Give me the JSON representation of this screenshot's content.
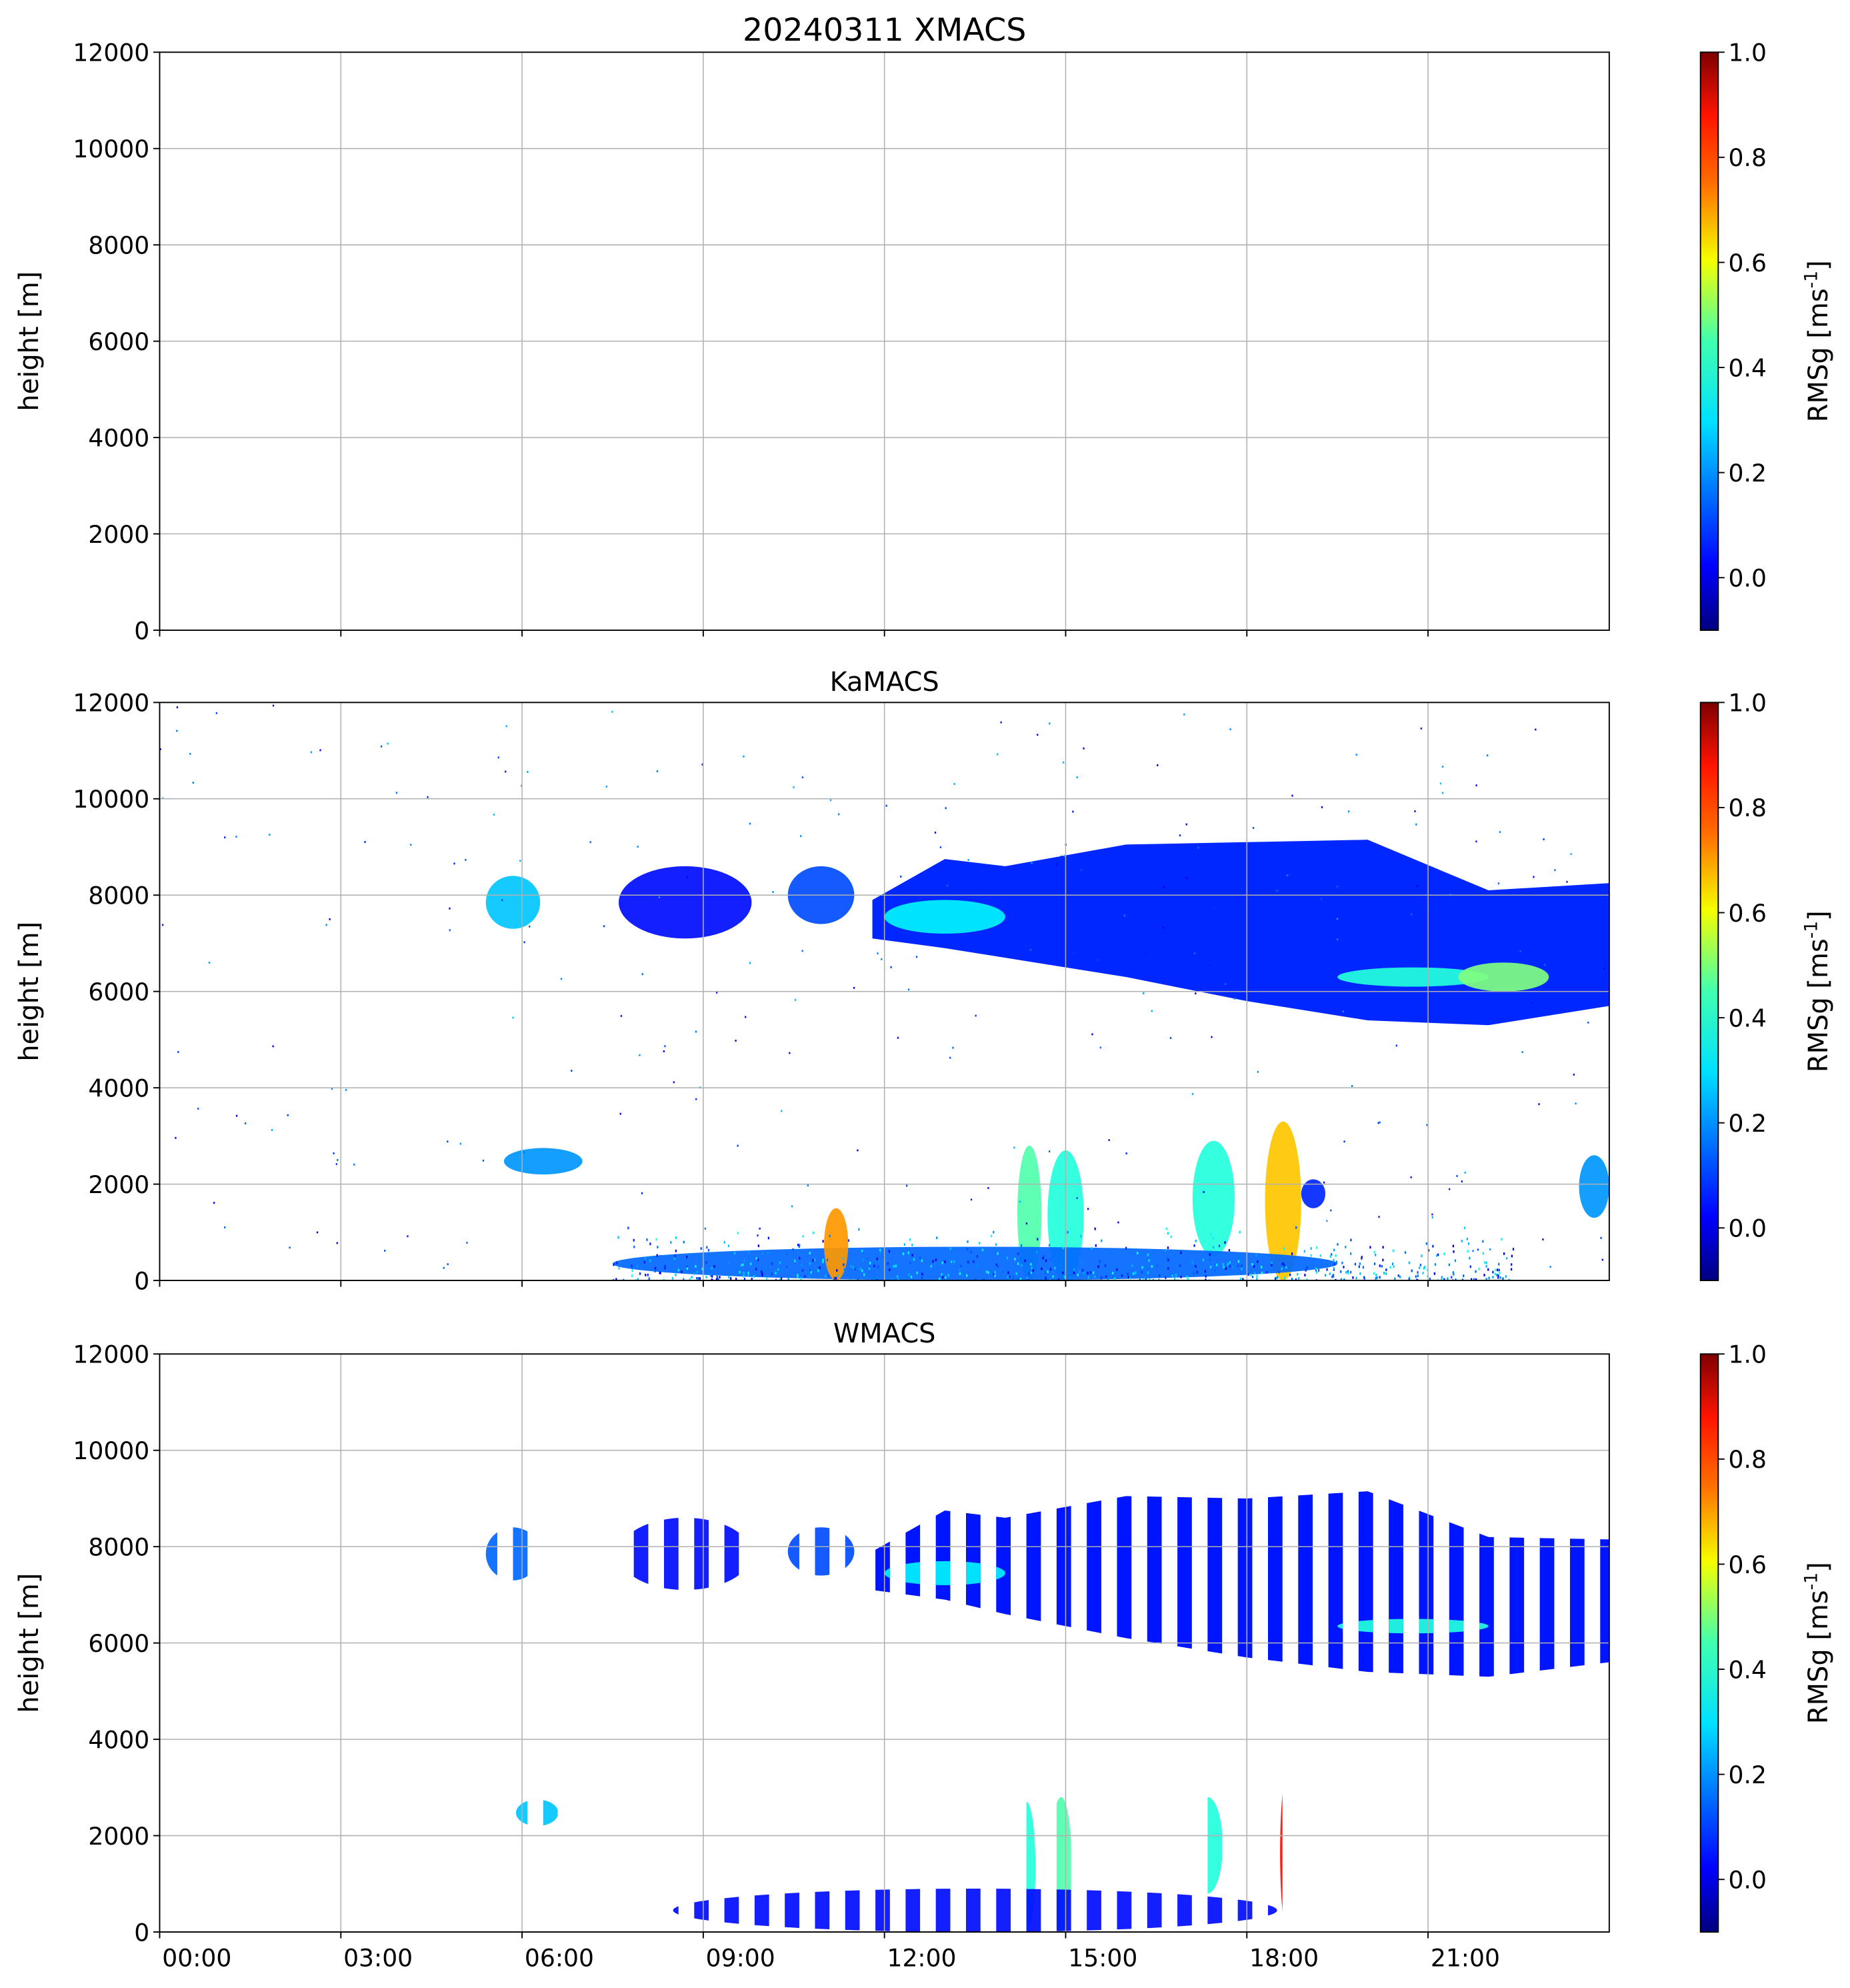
{
  "chart_data": [
    {
      "type": "heatmap",
      "title": "20240311 XMACS",
      "xlabel": "",
      "ylabel": "height [m]",
      "xlim_hours": [
        0,
        24
      ],
      "ylim": [
        0,
        12000
      ],
      "yticks": [
        "0",
        "2000",
        "4000",
        "6000",
        "8000",
        "10000",
        "12000"
      ],
      "grid": true,
      "colorbar": {
        "label": "RMSg [ms",
        "label_sup": "-1",
        "label_end": "]",
        "range": [
          -0.1,
          1.0
        ],
        "ticks": [
          "0.0",
          "0.2",
          "0.4",
          "0.6",
          "0.8",
          "1.0"
        ],
        "colormap": "jet"
      },
      "features": [],
      "noise": false
    },
    {
      "type": "heatmap",
      "title": "KaMACS",
      "xlabel": "",
      "ylabel": "height [m]",
      "xlim_hours": [
        0,
        24
      ],
      "ylim": [
        0,
        12000
      ],
      "yticks": [
        "0",
        "2000",
        "4000",
        "6000",
        "8000",
        "10000",
        "12000"
      ],
      "grid": true,
      "colorbar": {
        "label": "RMSg [ms",
        "label_sup": "-1",
        "label_end": "]",
        "range": [
          -0.1,
          1.0
        ],
        "ticks": [
          "0.0",
          "0.2",
          "0.4",
          "0.6",
          "0.8",
          "1.0"
        ],
        "colormap": "jet"
      },
      "features": [
        {
          "name": "cloud-0530",
          "t0": 5.4,
          "t1": 6.3,
          "bottom": 7300,
          "top": 8400,
          "value": 0.25
        },
        {
          "name": "low-cloud-0600",
          "t0": 5.7,
          "t1": 7.0,
          "bottom": 2200,
          "top": 2750,
          "value": 0.2
        },
        {
          "name": "cloud-0800",
          "t0": 7.6,
          "t1": 9.8,
          "bottom": 7100,
          "top": 8600,
          "value": 0.05
        },
        {
          "name": "cloud-1030",
          "t0": 10.4,
          "t1": 11.5,
          "bottom": 7400,
          "top": 8600,
          "value": 0.12
        },
        {
          "name": "cirrus-top-layer",
          "envelope": {
            "t": [
              11.8,
              13,
              14,
              16,
              18,
              20,
              22,
              24
            ],
            "top": [
              8000,
              8600,
              8700,
              8900,
              9200,
              9000,
              8200,
              8100
            ],
            "bottom": [
              7100,
              6900,
              6700,
              6300,
              5800,
              5400,
              5300,
              5700
            ]
          },
          "value": 0.08
        },
        {
          "name": "cirrus-core-1",
          "t0": 12,
          "t1": 14,
          "bottom": 7200,
          "top": 7900,
          "value": 0.3
        },
        {
          "name": "cirrus-core-2",
          "t0": 19.5,
          "t1": 22,
          "bottom": 6100,
          "top": 6500,
          "value": 0.35
        },
        {
          "name": "cirrus-core-3",
          "t0": 21.5,
          "t1": 23,
          "bottom": 6000,
          "top": 6600,
          "value": 0.45
        },
        {
          "name": "convective-1",
          "t0": 14.2,
          "t1": 14.6,
          "bottom": 0,
          "top": 2800,
          "value": 0.4
        },
        {
          "name": "convective-2",
          "t0": 14.7,
          "t1": 15.3,
          "bottom": 0,
          "top": 2700,
          "value": 0.35
        },
        {
          "name": "convective-3",
          "t0": 17.1,
          "t1": 17.8,
          "bottom": 500,
          "top": 2900,
          "value": 0.35
        },
        {
          "name": "convective-4",
          "t0": 18.3,
          "t1": 18.9,
          "bottom": 0,
          "top": 3300,
          "value": 0.65
        },
        {
          "name": "convective-4-anvil",
          "t0": 18.9,
          "t1": 19.3,
          "bottom": 1500,
          "top": 2100,
          "value": 0.08
        },
        {
          "name": "boundary-layer",
          "t0": 7.5,
          "t1": 19.5,
          "bottom": 0,
          "top": 700,
          "value": 0.15
        },
        {
          "name": "boundary-layer-peak",
          "t0": 11.0,
          "t1": 11.4,
          "bottom": 0,
          "top": 1500,
          "value": 0.7
        },
        {
          "name": "low-cloud-2330",
          "t0": 23.5,
          "t1": 24,
          "bottom": 1300,
          "top": 2600,
          "value": 0.2
        }
      ],
      "noise": true
    },
    {
      "type": "heatmap",
      "title": "WMACS",
      "xlabel": "",
      "ylabel": "height [m]",
      "xlim_hours": [
        0,
        24
      ],
      "xticks": [
        "00:00",
        "03:00",
        "06:00",
        "09:00",
        "12:00",
        "15:00",
        "18:00",
        "21:00"
      ],
      "ylim": [
        0,
        12000
      ],
      "yticks": [
        "0",
        "2000",
        "4000",
        "6000",
        "8000",
        "10000",
        "12000"
      ],
      "grid": true,
      "colorbar": {
        "label": "RMSg [ms",
        "label_sup": "-1",
        "label_end": "]",
        "range": [
          -0.1,
          1.0
        ],
        "ticks": [
          "0.0",
          "0.2",
          "0.4",
          "0.6",
          "0.8",
          "1.0"
        ],
        "colormap": "jet"
      },
      "sampling": {
        "stripe_period_h": 0.5,
        "stripe_width_h": 0.24,
        "start_h": 5.35
      },
      "features": [
        {
          "name": "cloud-0530",
          "t0": 5.4,
          "t1": 6.3,
          "bottom": 7300,
          "top": 8400,
          "value": 0.15
        },
        {
          "name": "low-cloud-0600",
          "t0": 5.9,
          "t1": 6.6,
          "bottom": 2200,
          "top": 2750,
          "value": 0.25
        },
        {
          "name": "cloud-0800",
          "t0": 7.6,
          "t1": 9.8,
          "bottom": 7100,
          "top": 8600,
          "value": 0.05
        },
        {
          "name": "cloud-1030",
          "t0": 10.4,
          "t1": 11.5,
          "bottom": 7400,
          "top": 8400,
          "value": 0.12
        },
        {
          "name": "cirrus-top-layer",
          "envelope": {
            "t": [
              11.8,
              13,
              14,
              16,
              18,
              20,
              22,
              24
            ],
            "top": [
              8000,
              8600,
              8700,
              8900,
              9100,
              9000,
              8300,
              8000
            ],
            "bottom": [
              7100,
              6900,
              6600,
              6100,
              5700,
              5400,
              5300,
              5600
            ]
          },
          "value": 0.06
        },
        {
          "name": "cirrus-core-1",
          "t0": 12,
          "t1": 14,
          "bottom": 7200,
          "top": 7700,
          "value": 0.3
        },
        {
          "name": "cirrus-core-2",
          "t0": 19.5,
          "t1": 22,
          "bottom": 6200,
          "top": 6500,
          "value": 0.35
        },
        {
          "name": "convective-1",
          "t0": 14.2,
          "t1": 14.5,
          "bottom": 0,
          "top": 2700,
          "value": 0.35
        },
        {
          "name": "convective-2",
          "t0": 14.75,
          "t1": 15.1,
          "bottom": 0,
          "top": 2800,
          "value": 0.4
        },
        {
          "name": "convective-3",
          "t0": 17.1,
          "t1": 17.6,
          "bottom": 800,
          "top": 2800,
          "value": 0.35
        },
        {
          "name": "convective-4",
          "t0": 18.55,
          "t1": 18.8,
          "bottom": 0,
          "top": 3300,
          "value": 0.85
        },
        {
          "name": "convective-4-anvil",
          "t0": 19.1,
          "t1": 19.3,
          "bottom": 1200,
          "top": 2100,
          "value": 0.08
        },
        {
          "name": "boundary-layer",
          "t0": 8.5,
          "t1": 18.5,
          "bottom": 0,
          "top": 900,
          "value": 0.05
        }
      ],
      "noise": false
    }
  ]
}
